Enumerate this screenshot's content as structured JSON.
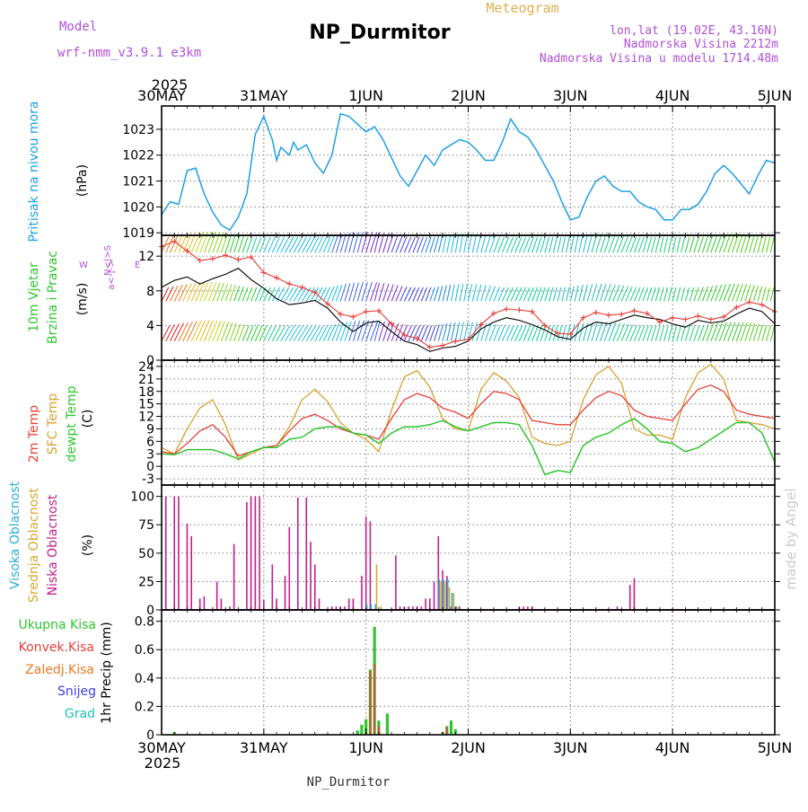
{
  "header": {
    "model_label": "Model",
    "model_name": "wrf-nmm_v3.9.1 e3km",
    "title": "NP_Durmitor",
    "subtitle": "Meteogram",
    "lonlat": "lon,lat (19.02E, 43.16N)",
    "elevation": "Nadmorska Visina 2212m",
    "model_elevation": "Nadmorska Visina u modelu 1714.48m",
    "footer": "NP_Durmitor",
    "credit": "made by Angel",
    "year_top": "2025",
    "year_bottom": "2025"
  },
  "colors": {
    "pressure": "#1ea0e6",
    "temp2m": "#e8403a",
    "sfc": "#d9a030",
    "dew": "#2fc52f",
    "high_cloud": "#2ab0d8",
    "mid_cloud": "#d8a830",
    "low_cloud": "#c0208a",
    "total_precip": "#2fc52f",
    "conv_precip": "#e8403a",
    "frozen_precip": "#f07820",
    "snow": "#4040e0",
    "graupel": "#20c0c0",
    "wind_label": "#2fc52f",
    "purple": "#b050d8",
    "credit": "#c8ccc8"
  },
  "chart_data": [
    {
      "type": "line",
      "name": "pressure",
      "ylabel_main": "Pritisak na nivou mora",
      "ylabel_unit": "(hPa)",
      "x_ticks": [
        "30MAY",
        "31MAY",
        "1JUN",
        "2JUN",
        "3JUN",
        "4JUN",
        "5JUN"
      ],
      "yticks": [
        "1019",
        "1020",
        "1021",
        "1022",
        "1023"
      ],
      "ylim": [
        1018.9,
        1023.9
      ],
      "x": [
        0,
        2,
        4,
        6,
        8,
        10,
        12,
        14,
        16,
        18,
        20,
        22,
        24,
        26,
        27,
        28,
        30,
        31,
        32,
        34,
        36,
        38,
        40,
        42,
        44,
        46,
        48,
        50,
        52,
        54,
        56,
        58,
        60,
        62,
        64,
        66,
        68,
        70,
        72,
        74,
        76,
        78,
        80,
        82,
        84,
        86,
        88,
        90,
        92,
        94,
        96,
        98,
        100,
        102,
        104,
        106,
        108,
        110,
        112,
        114,
        116,
        118,
        120,
        122,
        124,
        126,
        128,
        130,
        132,
        134,
        136,
        138,
        140,
        142,
        144
      ],
      "values": [
        1019.7,
        1020.2,
        1020.1,
        1021.4,
        1021.5,
        1020.5,
        1019.8,
        1019.3,
        1019.1,
        1019.6,
        1020.5,
        1022.8,
        1023.5,
        1022.6,
        1021.8,
        1022.3,
        1022.0,
        1022.5,
        1022.2,
        1022.4,
        1021.7,
        1021.3,
        1022.0,
        1023.6,
        1023.5,
        1023.2,
        1022.9,
        1023.1,
        1022.6,
        1021.9,
        1021.2,
        1020.8,
        1021.4,
        1022.0,
        1021.6,
        1022.2,
        1022.4,
        1022.6,
        1022.5,
        1022.2,
        1021.8,
        1021.8,
        1022.5,
        1023.4,
        1022.9,
        1022.7,
        1022.2,
        1021.6,
        1021.0,
        1020.2,
        1019.5,
        1019.6,
        1020.4,
        1021.0,
        1021.2,
        1020.8,
        1020.6,
        1020.6,
        1020.2,
        1020.0,
        1019.9,
        1019.5,
        1019.5,
        1019.9,
        1019.9,
        1020.1,
        1020.6,
        1021.3,
        1021.6,
        1021.3,
        1020.9,
        1020.5,
        1021.2,
        1021.8,
        1021.7
      ],
      "units": "hPa"
    },
    {
      "type": "line",
      "name": "wind",
      "ylabel_main": "10m Vjetar",
      "ylabel_sub": "Brzina i Pravac",
      "ylabel_unit": "(m/s)",
      "compass": "N<|>S",
      "compass_w": "W",
      "compass_e": "E",
      "compass_flag": "a<-|->",
      "yticks": [
        "0",
        "4",
        "8",
        "12"
      ],
      "ylim": [
        0,
        14.4
      ],
      "x": [
        0,
        3,
        6,
        9,
        12,
        15,
        18,
        21,
        24,
        27,
        30,
        33,
        36,
        39,
        42,
        45,
        48,
        51,
        54,
        57,
        60,
        63,
        66,
        69,
        72,
        75,
        78,
        81,
        84,
        87,
        90,
        93,
        96,
        99,
        102,
        105,
        108,
        111,
        114,
        117,
        120,
        123,
        126,
        129,
        132,
        135,
        138,
        141,
        144
      ],
      "speed": [
        8.4,
        9.2,
        9.6,
        8.8,
        9.4,
        9.9,
        10.6,
        9.3,
        8.3,
        7.1,
        6.4,
        6.6,
        6.9,
        6.0,
        4.4,
        3.3,
        4.3,
        4.5,
        3.3,
        2.2,
        1.8,
        1.0,
        1.4,
        1.6,
        2.2,
        3.6,
        4.4,
        4.9,
        4.6,
        4.1,
        3.5,
        2.7,
        2.4,
        3.7,
        4.4,
        4.2,
        4.7,
        5.2,
        4.9,
        4.7,
        4.2,
        3.8,
        4.6,
        4.3,
        4.5,
        5.3,
        6.0,
        5.6,
        4.2
      ],
      "gust": [
        13.1,
        13.7,
        12.6,
        11.5,
        11.7,
        12.1,
        11.6,
        11.9,
        10.1,
        9.5,
        8.8,
        8.4,
        7.8,
        6.5,
        5.3,
        5.0,
        5.6,
        5.7,
        4.2,
        2.9,
        2.5,
        1.5,
        1.7,
        2.2,
        2.4,
        4.1,
        5.4,
        5.9,
        5.8,
        5.6,
        4.0,
        3.1,
        3.0,
        4.9,
        5.5,
        5.2,
        5.3,
        5.7,
        5.4,
        4.4,
        4.9,
        4.7,
        5.1,
        4.7,
        5.0,
        6.1,
        6.7,
        6.4,
        5.6
      ],
      "units": "m/s"
    },
    {
      "type": "line",
      "name": "temperature",
      "ylabel_temp": "2m Temp",
      "ylabel_sfc": "SFC Temp",
      "ylabel_dew": "dewpt Temp",
      "ylabel_unit": "(C)",
      "yticks": [
        "-3",
        "0",
        "3",
        "6",
        "9",
        "12",
        "15",
        "18",
        "21",
        "24"
      ],
      "ylim": [
        -4.5,
        25.5
      ],
      "x": [
        0,
        3,
        6,
        9,
        12,
        15,
        18,
        21,
        24,
        27,
        30,
        33,
        36,
        39,
        42,
        45,
        48,
        51,
        54,
        57,
        60,
        63,
        66,
        69,
        72,
        75,
        78,
        81,
        84,
        87,
        90,
        93,
        96,
        99,
        102,
        105,
        108,
        111,
        114,
        117,
        120,
        123,
        126,
        129,
        132,
        135,
        138,
        141,
        144
      ],
      "temp2m": [
        3.5,
        3.0,
        5.5,
        8.5,
        10.0,
        7.0,
        2.5,
        3.5,
        4.5,
        5.0,
        8.5,
        11.5,
        12.5,
        11.0,
        9.0,
        8.0,
        7.5,
        6.5,
        11.5,
        16.0,
        17.5,
        16.5,
        14.0,
        13.0,
        11.5,
        15.0,
        18.0,
        17.5,
        16.0,
        11.0,
        10.5,
        10.0,
        10.0,
        13.5,
        16.5,
        18.0,
        17.0,
        13.5,
        12.0,
        11.5,
        11.0,
        15.0,
        18.5,
        19.5,
        18.0,
        13.5,
        12.5,
        12.0,
        11.5
      ],
      "sfc": [
        4.5,
        3.0,
        9.0,
        14.0,
        16.0,
        10.0,
        1.5,
        3.0,
        4.5,
        5.0,
        9.5,
        16.0,
        18.5,
        15.5,
        10.5,
        8.0,
        6.5,
        3.5,
        13.5,
        21.5,
        23.0,
        19.0,
        11.5,
        9.0,
        8.5,
        18.5,
        22.5,
        20.5,
        16.5,
        7.0,
        5.5,
        5.0,
        6.0,
        16.0,
        22.0,
        24.0,
        20.0,
        9.0,
        7.5,
        7.5,
        6.5,
        16.5,
        22.5,
        24.5,
        21.0,
        11.0,
        10.5,
        10.0,
        9.0
      ],
      "dew": [
        3.0,
        2.8,
        4.0,
        4.0,
        4.0,
        3.0,
        1.8,
        3.5,
        4.5,
        4.5,
        6.5,
        7.0,
        9.0,
        9.5,
        9.5,
        8.0,
        7.5,
        5.5,
        8.0,
        9.5,
        9.5,
        10.0,
        11.0,
        9.5,
        8.5,
        9.5,
        10.5,
        10.5,
        10.0,
        5.0,
        -2.0,
        -1.0,
        -1.5,
        5.0,
        7.0,
        8.0,
        10.0,
        11.5,
        9.0,
        6.0,
        5.5,
        3.5,
        4.5,
        6.5,
        8.5,
        10.5,
        10.5,
        8.0,
        1.0
      ],
      "units": "C"
    },
    {
      "type": "bar",
      "name": "cloud",
      "ylabel_high": "Visoka Oblacnost",
      "ylabel_mid": "Srednja Oblacnost",
      "ylabel_low": "Niska Oblacnost",
      "ylabel_unit": "(%)",
      "yticks": [
        "0",
        "25",
        "50",
        "75",
        "100"
      ],
      "ylim": [
        0,
        110
      ],
      "low_x": [
        1,
        3,
        4,
        6,
        7,
        9,
        10,
        13,
        14,
        16,
        17,
        20,
        21,
        22,
        23,
        24,
        26,
        27,
        29,
        30,
        32,
        34,
        35,
        36,
        37,
        40,
        41,
        42,
        43,
        44,
        45,
        47,
        48,
        49,
        55,
        56,
        57,
        58,
        59,
        60,
        61,
        62,
        63,
        64,
        65,
        66,
        67,
        68,
        69,
        70,
        84,
        85,
        86,
        87,
        107,
        110,
        111
      ],
      "low_v": [
        100,
        100,
        100,
        76,
        65,
        10,
        12,
        25,
        10,
        3,
        58,
        95,
        100,
        100,
        100,
        9,
        40,
        10,
        30,
        73,
        99,
        99,
        60,
        40,
        10,
        3,
        3,
        3,
        3,
        10,
        10,
        30,
        82,
        78,
        48,
        3,
        3,
        3,
        3,
        3,
        3,
        10,
        10,
        25,
        65,
        35,
        30,
        3,
        3,
        3,
        3,
        3,
        3,
        3,
        3,
        22,
        28
      ],
      "mid_x": [
        66,
        67,
        68,
        69,
        70
      ],
      "mid_v": [
        25,
        25,
        20,
        15,
        3
      ],
      "high_x": [
        49,
        50,
        51,
        66,
        67,
        68,
        69,
        70
      ],
      "high_v": [
        5,
        5,
        5,
        27,
        27,
        27,
        15,
        3
      ],
      "mid2_x": [
        50,
        51
      ],
      "mid2_v": [
        40,
        3
      ],
      "units": "%"
    },
    {
      "type": "bar",
      "name": "precipitation",
      "legend": [
        "Ukupna Kisa",
        "Konvek.Kisa",
        "Zaledj.Kisa",
        "Snijeg",
        "Grad"
      ],
      "ylabel_unit": "1hr Precip (mm)",
      "yticks": [
        "0",
        "0.2",
        "0.4",
        "0.6",
        "0.8"
      ],
      "ylim": [
        0,
        0.88
      ],
      "total_x": [
        3,
        46,
        47,
        48,
        49,
        50,
        51,
        53,
        66,
        67,
        68,
        69
      ],
      "total_v": [
        0.02,
        0.03,
        0.07,
        0.11,
        0.46,
        0.76,
        0.1,
        0.15,
        0.02,
        0.06,
        0.1,
        0.04
      ],
      "conv_x": [
        48,
        49,
        50,
        51,
        66,
        67
      ],
      "conv_v": [
        0.02,
        0.45,
        0.5,
        0.06,
        0.02,
        0.06
      ],
      "units": "mm"
    }
  ]
}
